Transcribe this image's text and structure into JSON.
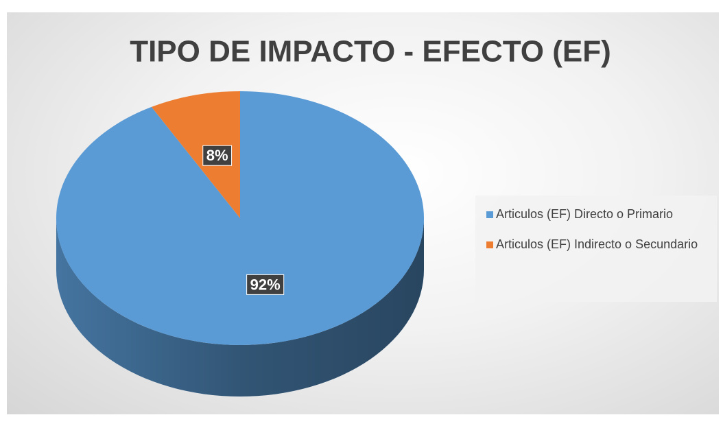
{
  "chart_data": {
    "type": "pie",
    "title": "TIPO DE IMPACTO - EFECTO (EF)",
    "categories": [
      "Articulos (EF) Directo o Primario",
      "Articulos (EF) Indirecto o Secundario"
    ],
    "values": [
      92,
      8
    ],
    "value_labels": [
      "92%",
      "8%"
    ],
    "colors": [
      "#5b9bd5",
      "#ed7d31"
    ],
    "legend": "right"
  }
}
